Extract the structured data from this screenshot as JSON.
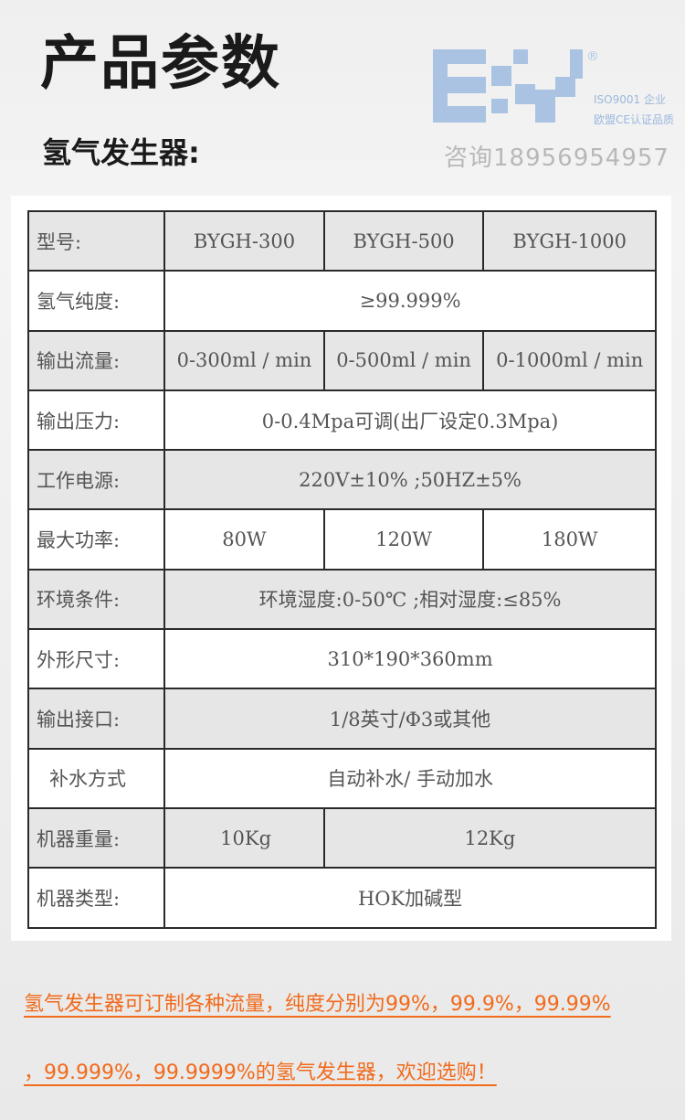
{
  "header": {
    "title": "产品参数",
    "subtitle": "氢气发生器:"
  },
  "brand": {
    "logo_text": "BY",
    "registered": "®",
    "line1": "ISO9001 企业",
    "line2": "欧盟CE认证品质",
    "contact": "咨询18956954957",
    "color": "#aac3e3"
  },
  "table": {
    "rows": [
      {
        "label": "型号:",
        "cells": [
          "BYGH-300",
          "BYGH-500",
          "BYGH-1000"
        ]
      },
      {
        "label": "氢气纯度:",
        "cells": [
          "≥99.999%"
        ]
      },
      {
        "label": "输出流量:",
        "cells": [
          "0-300ml / min",
          "0-500ml / min",
          "0-1000ml / min"
        ]
      },
      {
        "label": "输出压力:",
        "cells": [
          "0-0.4Mpa可调(出厂设定0.3Mpa)"
        ]
      },
      {
        "label": "工作电源:",
        "cells": [
          "220V±10% ;50HZ±5%"
        ]
      },
      {
        "label": "最大功率:",
        "cells": [
          "80W",
          "120W",
          "180W"
        ]
      },
      {
        "label": "环境条件:",
        "cells": [
          "环境湿度:0-50℃ ;相对湿度:≤85%"
        ]
      },
      {
        "label": "外形尺寸:",
        "cells": [
          "310*190*360mm"
        ]
      },
      {
        "label": "输出接口:",
        "cells": [
          "1/8英寸/Φ3或其他"
        ]
      },
      {
        "label": "补水方式",
        "cells": [
          "自动补水/   手动加水"
        ]
      },
      {
        "label": "机器重量:",
        "cells": [
          "10Kg",
          "12Kg"
        ]
      },
      {
        "label": "机器类型:",
        "cells": [
          "HOK加碱型"
        ]
      }
    ]
  },
  "note": {
    "line1": "氢气发生器可订制各种流量，纯度分别为99%，99.9%，99.99%",
    "line2": "，99.999%，99.9999%的氢气发生器，欢迎选购！",
    "color": "#f26a1b"
  }
}
